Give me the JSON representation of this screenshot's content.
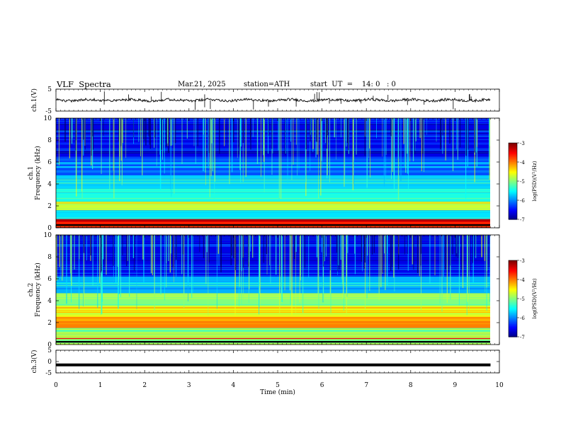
{
  "header": {
    "title": "VLF  Spectra",
    "date": "Mar.21, 2025",
    "station": "station=ATH",
    "start": "start  UT  =    14: 0   : 0"
  },
  "chart_data": [
    {
      "type": "line",
      "panel": "ch1-waveform",
      "ylabel": "ch.1(V)",
      "ylim": [
        -5,
        5
      ],
      "yticks": [
        "5",
        "-5"
      ],
      "x_range_min": [
        0,
        9.8
      ],
      "approx_level_V": 0
    },
    {
      "type": "heatmap",
      "panel": "ch1-spectrogram",
      "ylabel": "ch.1\nFrequency  (kHz)",
      "ylim": [
        0,
        10
      ],
      "yticks": [
        "0",
        "2",
        "4",
        "6",
        "8",
        "10"
      ],
      "colorbar_label": "log(PSD)(V²/Hz)",
      "colorbar_range": [
        -7,
        -3
      ],
      "colorbar_ticks": [
        "-3",
        "-4",
        "-5",
        "-6",
        "-7"
      ],
      "bands_kHz": [
        {
          "from": 0,
          "to": 0.8,
          "level": -3.6
        },
        {
          "from": 0.8,
          "to": 1.6,
          "level": -5.6
        },
        {
          "from": 1.6,
          "to": 2.4,
          "level": -4.7
        },
        {
          "from": 2.4,
          "to": 3.6,
          "level": -5.4
        },
        {
          "from": 3.6,
          "to": 4.8,
          "level": -5.7
        },
        {
          "from": 4.8,
          "to": 6.5,
          "level": -6.2
        },
        {
          "from": 6.5,
          "to": 10,
          "level": -6.6
        }
      ]
    },
    {
      "type": "heatmap",
      "panel": "ch2-spectrogram",
      "ylabel": "ch.2\nFrequency  (kHz)",
      "ylim": [
        0,
        10
      ],
      "yticks": [
        "0",
        "2",
        "4",
        "6",
        "8",
        "10"
      ],
      "colorbar_label": "log(PSD)(V²/Hz)",
      "colorbar_range": [
        -7,
        -3
      ],
      "colorbar_ticks": [
        "-3",
        "-4",
        "-5",
        "-6",
        "-7"
      ],
      "bands_kHz": [
        {
          "from": 0,
          "to": 1.5,
          "level": -5.0
        },
        {
          "from": 1.5,
          "to": 2.5,
          "level": -4.0
        },
        {
          "from": 2.5,
          "to": 3.5,
          "level": -4.6
        },
        {
          "from": 3.5,
          "to": 4.7,
          "level": -5.0
        },
        {
          "from": 4.7,
          "to": 6.2,
          "level": -5.8
        },
        {
          "from": 6.2,
          "to": 10,
          "level": -6.6
        }
      ]
    },
    {
      "type": "line",
      "panel": "ch3-waveform",
      "ylabel": "ch.3(V)",
      "ylim": [
        -5,
        5
      ],
      "yticks": [
        "5",
        "0",
        "-5"
      ],
      "x_range_min": [
        0,
        9.8
      ],
      "approx_level_V": -1.5
    }
  ],
  "x_axis": {
    "label": "Time  (min)",
    "range": [
      0,
      10
    ],
    "ticks": [
      "0",
      "1",
      "2",
      "3",
      "4",
      "5",
      "6",
      "7",
      "8",
      "9",
      "10"
    ]
  }
}
